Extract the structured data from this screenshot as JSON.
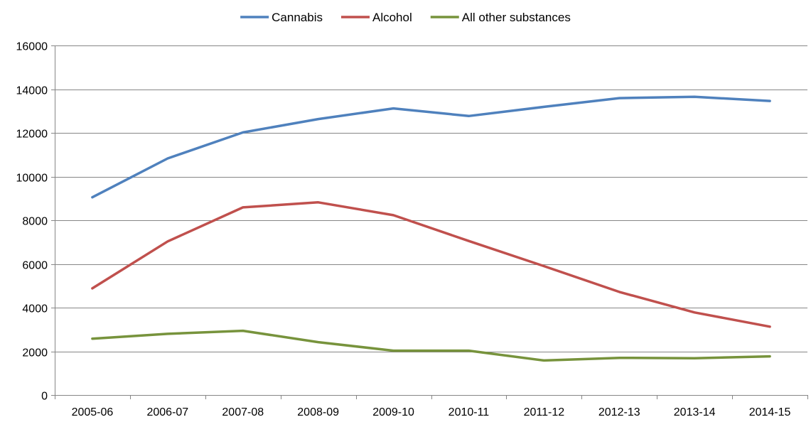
{
  "chart_data": {
    "type": "line",
    "x": [
      "2005-06",
      "2006-07",
      "2007-08",
      "2008-09",
      "2009-10",
      "2010-11",
      "2011-12",
      "2012-13",
      "2013-14",
      "2014-15"
    ],
    "series": [
      {
        "name": "Cannabis",
        "color": "#4f81bd",
        "values": [
          9050,
          10830,
          12020,
          12630,
          13120,
          12770,
          13190,
          13590,
          13650,
          13460
        ]
      },
      {
        "name": "Alcohol",
        "color": "#c0504d",
        "values": [
          4880,
          7030,
          8590,
          8820,
          8230,
          7050,
          5900,
          4720,
          3780,
          3130
        ]
      },
      {
        "name": "All other substances",
        "color": "#77933c",
        "values": [
          2580,
          2800,
          2940,
          2420,
          2030,
          2030,
          1580,
          1700,
          1680,
          1770
        ]
      }
    ],
    "ylim": [
      0,
      16000
    ],
    "yticks": [
      0,
      2000,
      4000,
      6000,
      8000,
      10000,
      12000,
      14000,
      16000
    ],
    "grid": true,
    "legend": "top-center"
  }
}
